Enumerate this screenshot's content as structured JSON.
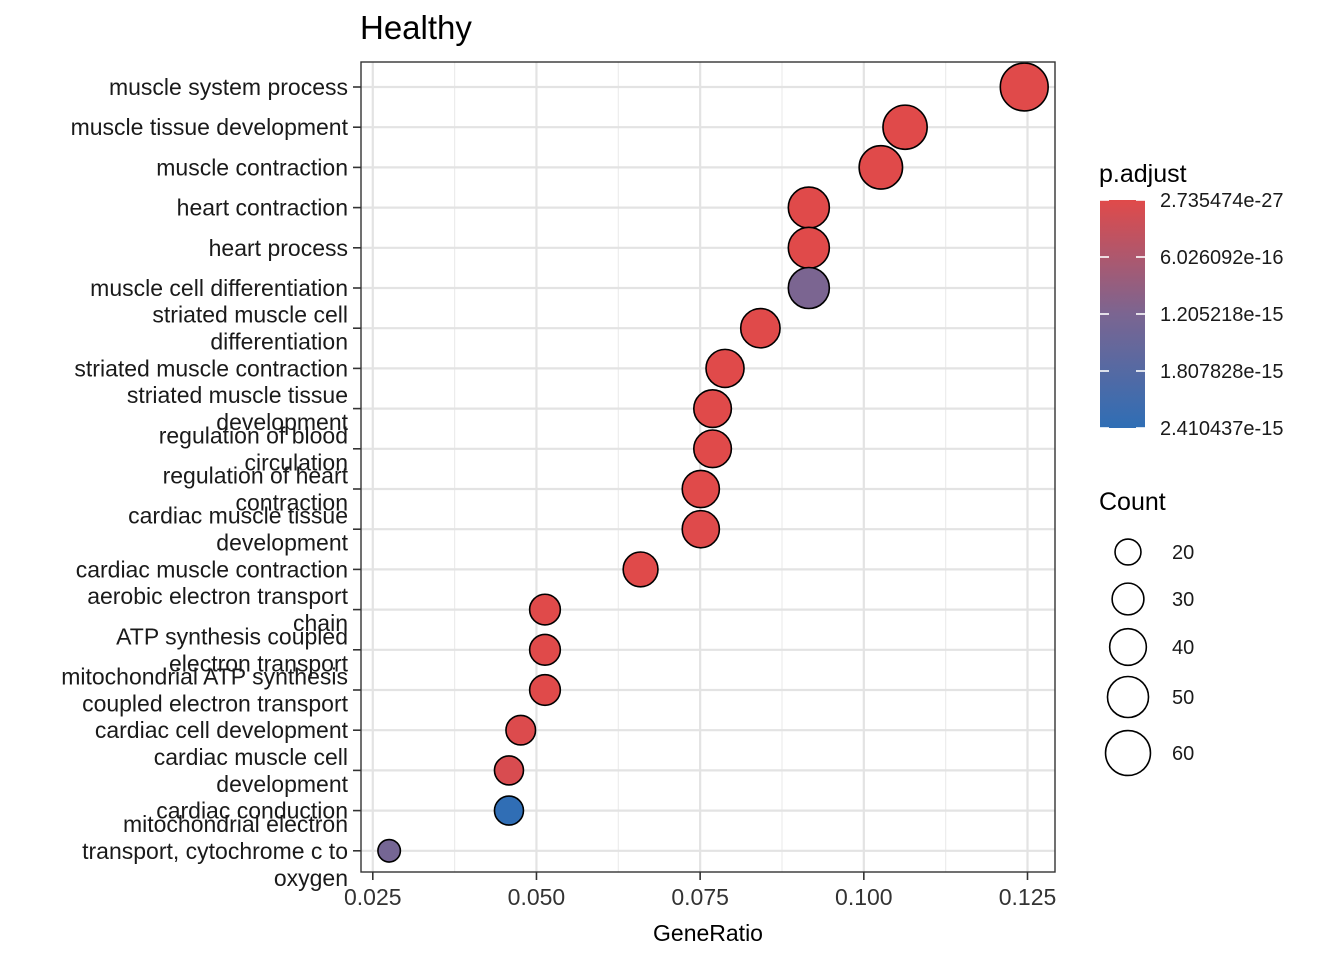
{
  "chart_data": {
    "type": "scatter",
    "title": "Healthy",
    "xlabel": "GeneRatio",
    "ylabel": "",
    "xlim": [
      0.0232,
      0.1292
    ],
    "xticks": [
      "0.025",
      "0.050",
      "0.075",
      "0.100",
      "0.125"
    ],
    "grid": true,
    "legend_placement": "right",
    "terms": [
      {
        "label": [
          "muscle system process"
        ],
        "x": 0.1245,
        "p": 2.8e-27,
        "count": 68
      },
      {
        "label": [
          "muscle tissue development"
        ],
        "x": 0.1063,
        "p": 1e-26,
        "count": 58
      },
      {
        "label": [
          "muscle contraction"
        ],
        "x": 0.1026,
        "p": 2e-26,
        "count": 56
      },
      {
        "label": [
          "heart contraction"
        ],
        "x": 0.0916,
        "p": 5e-22,
        "count": 50
      },
      {
        "label": [
          "heart process"
        ],
        "x": 0.0916,
        "p": 5e-22,
        "count": 50
      },
      {
        "label": [
          "muscle cell differentiation"
        ],
        "x": 0.0916,
        "p": 1.2e-15,
        "count": 50
      },
      {
        "label": [
          "striated muscle cell",
          "differentiation"
        ],
        "x": 0.0842,
        "p": 1e-20,
        "count": 46
      },
      {
        "label": [
          "striated muscle contraction"
        ],
        "x": 0.0788,
        "p": 1e-21,
        "count": 43
      },
      {
        "label": [
          "striated muscle tissue",
          "development"
        ],
        "x": 0.0769,
        "p": 1e-19,
        "count": 42
      },
      {
        "label": [
          "regulation of blood",
          "circulation"
        ],
        "x": 0.0769,
        "p": 1e-18,
        "count": 42
      },
      {
        "label": [
          "regulation of heart",
          "contraction"
        ],
        "x": 0.0751,
        "p": 1e-18,
        "count": 41
      },
      {
        "label": [
          "cardiac muscle tissue",
          "development"
        ],
        "x": 0.0751,
        "p": 1e-17,
        "count": 41
      },
      {
        "label": [
          "cardiac muscle contraction"
        ],
        "x": 0.0659,
        "p": 1e-20,
        "count": 36
      },
      {
        "label": [
          "aerobic electron transport",
          "chain"
        ],
        "x": 0.0513,
        "p": 1e-18,
        "count": 28
      },
      {
        "label": [
          "ATP synthesis coupled",
          "electron transport"
        ],
        "x": 0.0513,
        "p": 1e-18,
        "count": 28
      },
      {
        "label": [
          "mitochondrial ATP synthesis",
          "coupled electron transport"
        ],
        "x": 0.0513,
        "p": 1e-18,
        "count": 28
      },
      {
        "label": [
          "cardiac cell development"
        ],
        "x": 0.0476,
        "p": 5e-17,
        "count": 26
      },
      {
        "label": [
          "cardiac muscle cell",
          "development"
        ],
        "x": 0.0458,
        "p": 1e-16,
        "count": 25
      },
      {
        "label": [
          "cardiac conduction"
        ],
        "x": 0.0458,
        "p": 2.4e-15,
        "count": 25
      },
      {
        "label": [
          "mitochondrial electron",
          "transport, cytochrome c to",
          "oxygen"
        ],
        "x": 0.0275,
        "p": 1.3e-15,
        "count": 15
      }
    ],
    "color_legend": {
      "title": "p.adjust",
      "labels": [
        "2.735474e-27",
        "6.026092e-16",
        "1.205218e-15",
        "1.807828e-15",
        "2.410437e-15"
      ],
      "values": [
        2.735474e-27,
        6.026092e-16,
        1.205218e-15,
        1.807828e-15,
        2.410437e-15
      ],
      "low_color": "#e04a4a",
      "mid_color": "#7b6591",
      "high_color": "#2f6eb5"
    },
    "size_legend": {
      "title": "Count",
      "labels": [
        "20",
        "30",
        "40",
        "50",
        "60"
      ],
      "values": [
        20,
        30,
        40,
        50,
        60
      ]
    }
  }
}
